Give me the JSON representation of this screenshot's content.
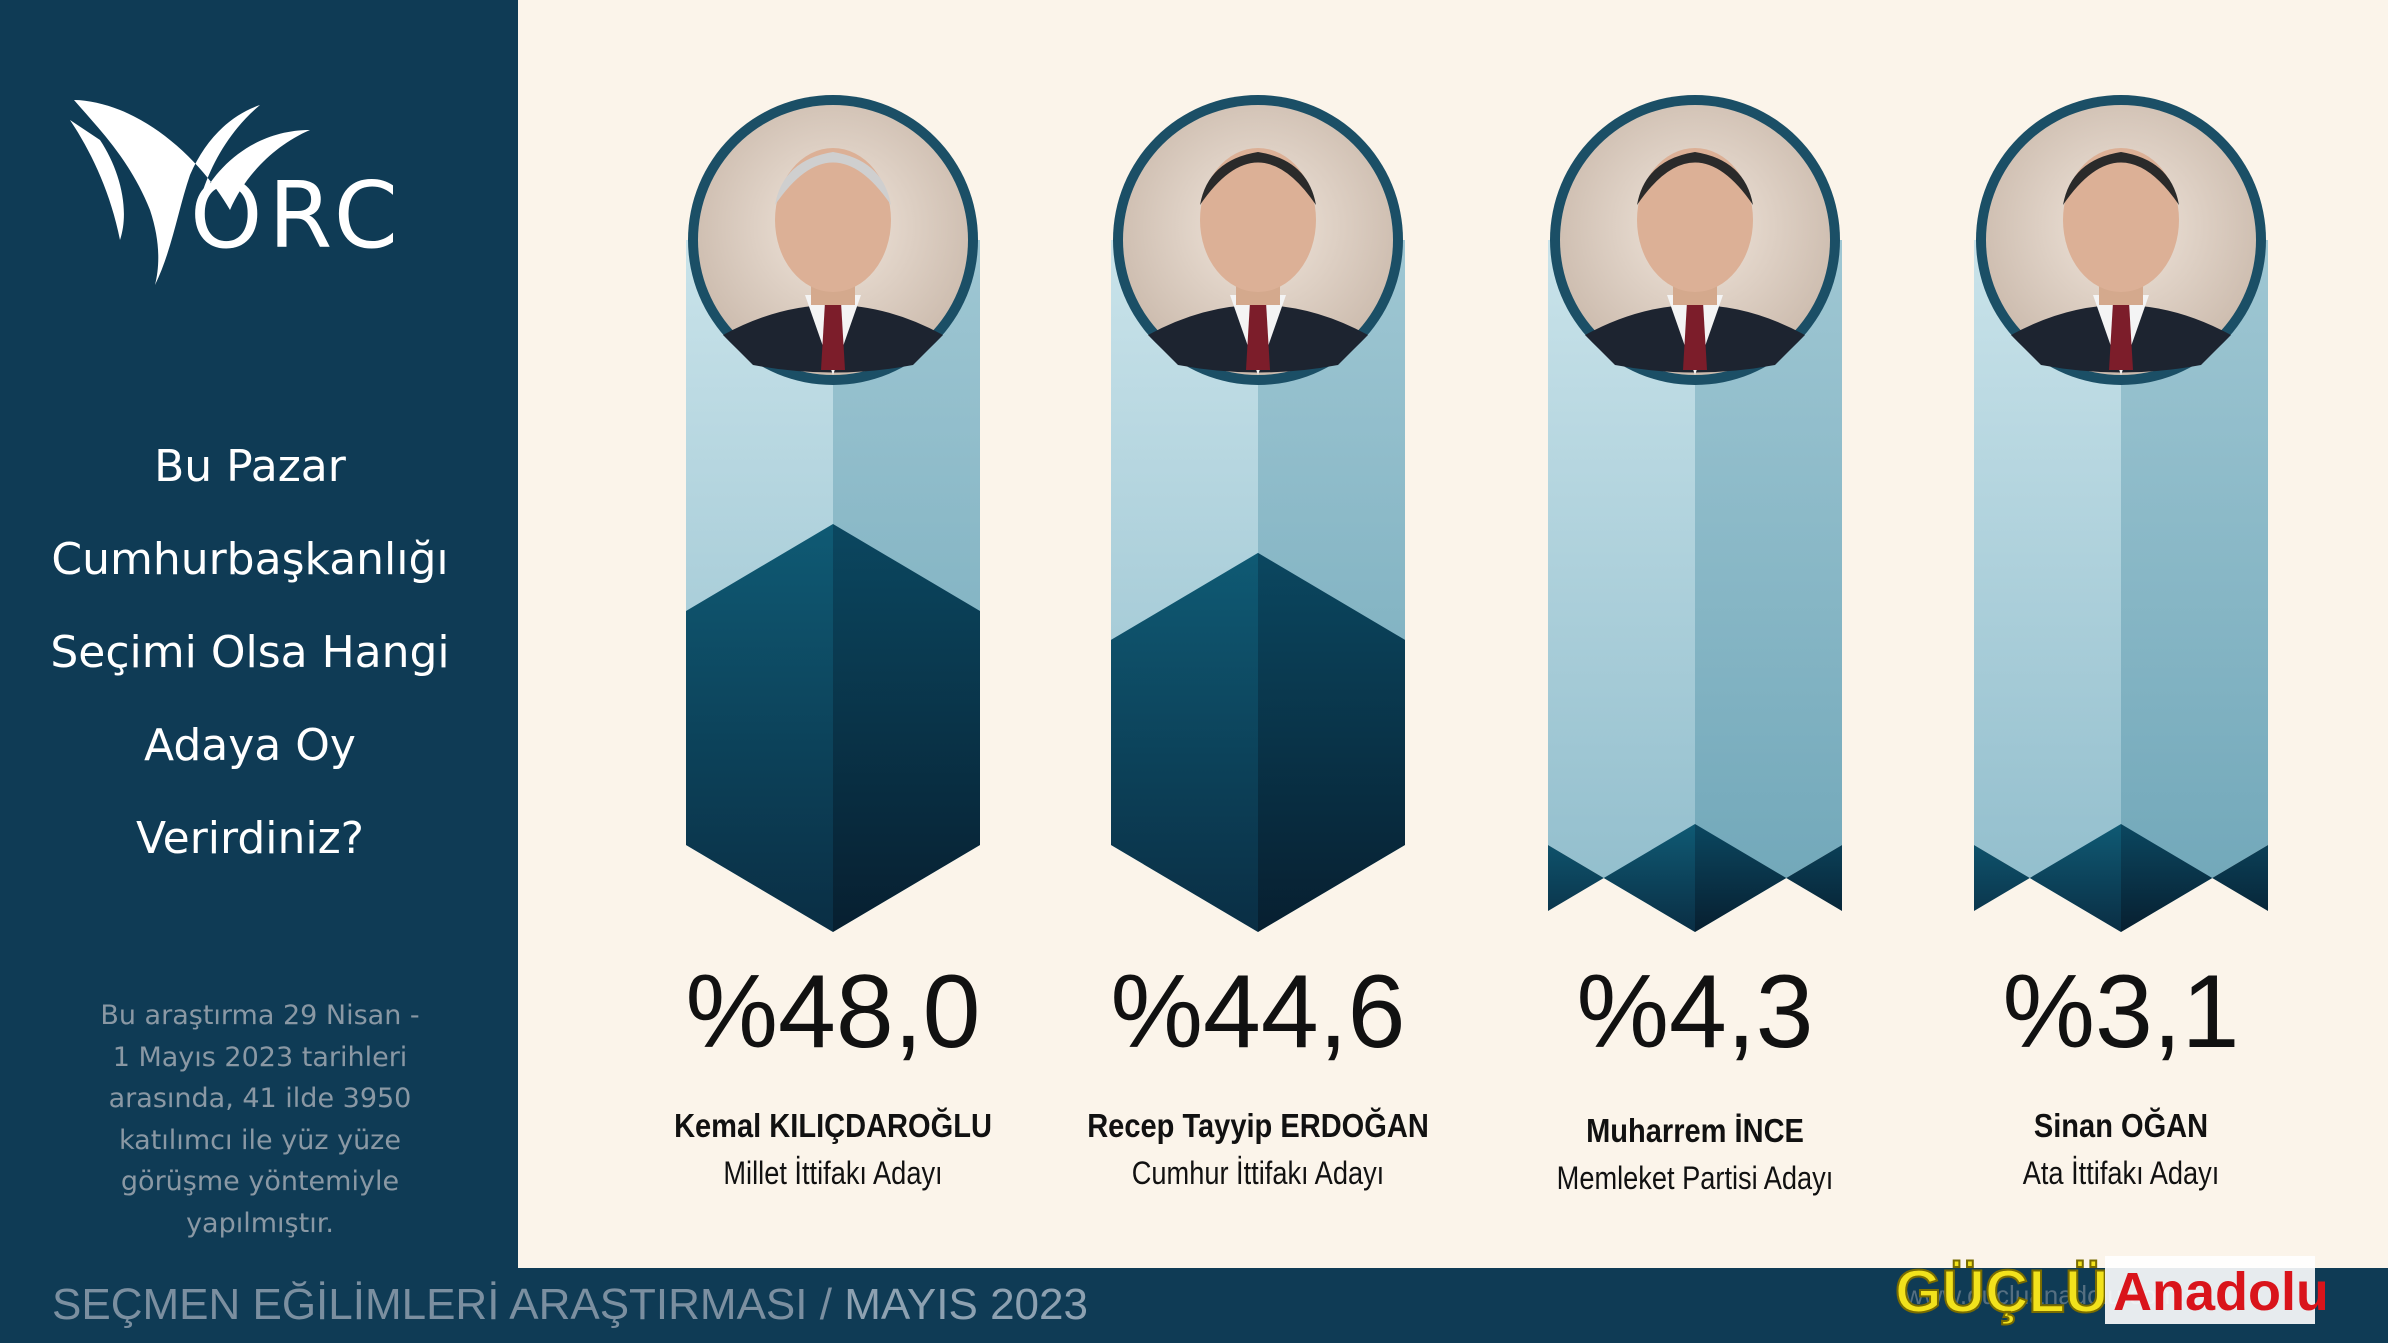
{
  "brand": {
    "logo_text": "ORC"
  },
  "sidebar": {
    "question_lines": [
      "Bu Pazar",
      "Cumhurbaşkanlığı",
      "Seçimi Olsa Hangi",
      "Adaya Oy",
      "Verirdiniz?"
    ],
    "method_lines": [
      "Bu araştırma 29 Nisan -",
      "1 Mayıs 2023 tarihleri",
      "arasında, 41 ilde 3950",
      "katılımcı ile yüz yüze",
      "görüşme yöntemiyle",
      "yapılmıştır."
    ]
  },
  "footer": {
    "title": "SEÇMEN EĞİLİMLERİ ARAŞTIRMASI /",
    "date": "MAYIS  2023"
  },
  "watermark": {
    "part1": "GÜÇLÜ",
    "part2": "Anadolu",
    "url": "www.gucluanadolu.com.tr"
  },
  "colors": {
    "navy": "#0f3b55",
    "background": "#fbf4ea",
    "bar_light": "#a9cfd9",
    "bar_dark": "#0f4a63"
  },
  "chart_data": {
    "type": "bar",
    "title": "Bu Pazar Cumhurbaşkanlığı Seçimi Olsa Hangi Adaya Oy Verirdiniz?",
    "categories": [
      "Kemal KILIÇDAROĞLU",
      "Recep Tayyip ERDOĞAN",
      "Muharrem İNCE",
      "Sinan OĞAN"
    ],
    "parties": [
      "Millet İttifakı Adayı",
      "Cumhur İttifakı Adayı",
      "Memleket Partisi Adayı",
      "Ata İttifakı Adayı"
    ],
    "values": [
      48.0,
      44.6,
      4.3,
      3.1
    ],
    "value_labels": [
      "%48,0",
      "%44,6",
      "%4,3",
      "%3,1"
    ],
    "ylim": [
      0,
      100
    ],
    "grid": false,
    "legend": false
  }
}
